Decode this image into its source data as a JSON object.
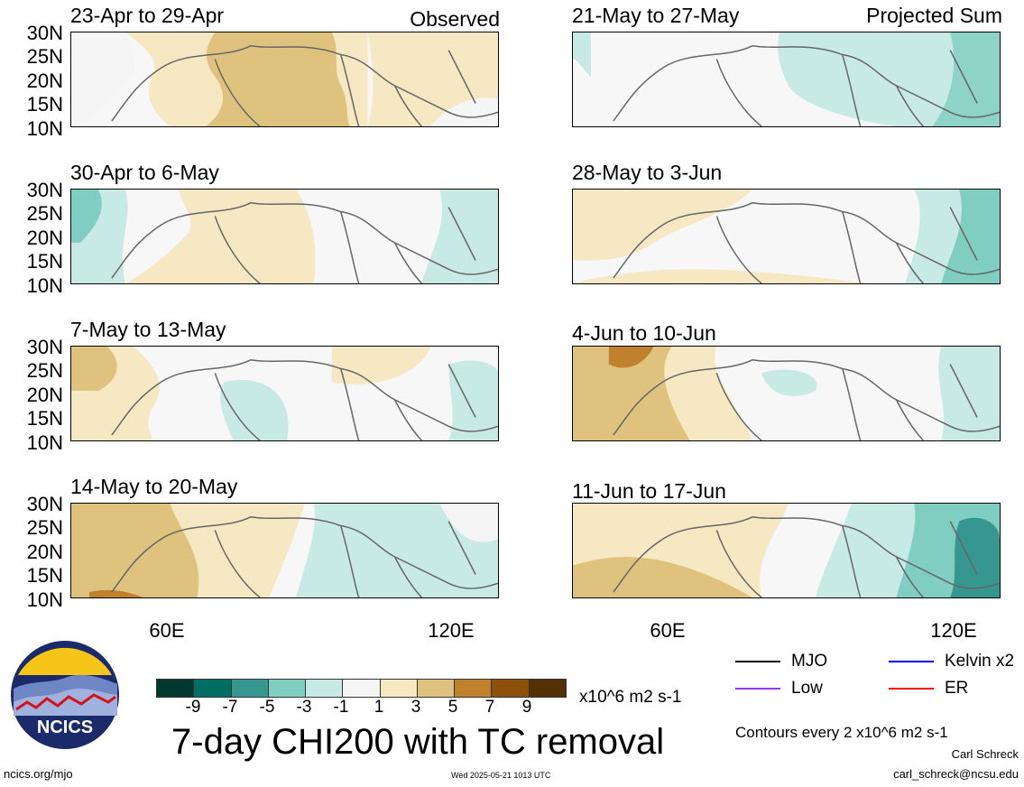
{
  "panels": [
    {
      "title": "23-Apr to 29-Apr",
      "tag": "Observed"
    },
    {
      "title": "30-Apr to 6-May",
      "tag": ""
    },
    {
      "title": "7-May to 13-May",
      "tag": ""
    },
    {
      "title": "14-May to 20-May",
      "tag": ""
    },
    {
      "title": "21-May to 27-May",
      "tag": "Projected Sum"
    },
    {
      "title": "28-May to 3-Jun",
      "tag": ""
    },
    {
      "title": "4-Jun to 10-Jun",
      "tag": ""
    },
    {
      "title": "11-Jun to 17-Jun",
      "tag": ""
    }
  ],
  "lat_labels": [
    "30N",
    "25N",
    "20N",
    "15N",
    "10N"
  ],
  "lon_labels": [
    "60E",
    "120E"
  ],
  "colorbar": {
    "colors": [
      "#00382e",
      "#016e63",
      "#35978f",
      "#80cdc1",
      "#c7eae5",
      "#f5f5f5",
      "#f6e8c3",
      "#dfc27d",
      "#bf812d",
      "#8c510a",
      "#543005"
    ],
    "labels": [
      "-9",
      "-7",
      "-5",
      "-3",
      "-1",
      "1",
      "3",
      "5",
      "7",
      "9"
    ],
    "units": "x10^6 m2 s-1"
  },
  "title": "7-day CHI200 with TC removal",
  "legend": [
    {
      "label": "MJO",
      "color": "#000000"
    },
    {
      "label": "Kelvin x2",
      "color": "#0000ff"
    },
    {
      "label": "Low",
      "color": "#9933ff"
    },
    {
      "label": "ER",
      "color": "#ff0000"
    }
  ],
  "contour_note": "Contours every 2 x10^6 m2 s-1",
  "author": "Carl Schreck",
  "email": "carl_schreck@ncsu.edu",
  "website": "ncics.org/mjo",
  "timestamp": "Wed 2025-05-21 1013 UTC",
  "logo_text": "NCICS"
}
